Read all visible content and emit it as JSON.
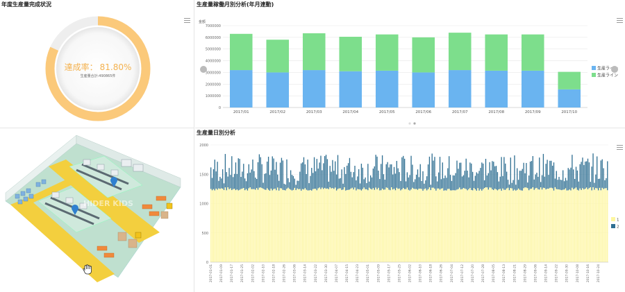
{
  "panels": {
    "annual": {
      "title": "年度生産量完成状況",
      "rate_label": "達成率：",
      "rate_value": "81.80%",
      "total_label": "生産量合計:",
      "total_value": "490865件",
      "completion": 0.818
    },
    "monthly": {
      "title": "生産量稼働月別分析(年月連動)"
    },
    "floor": {
      "title": "",
      "watermark": "HIDER KIDS"
    },
    "daily": {
      "title": "生産量日別分析"
    }
  },
  "colors": {
    "donut_fill": "#fbc97a",
    "donut_track": "#eeeeee",
    "bar_blue": "#6ab4f0",
    "bar_green": "#7dde8c",
    "daily_yellow": "#fdf6a0",
    "daily_blue": "#2f6f92",
    "rate_text": "#f4b24f"
  },
  "chart_data": [
    {
      "type": "bar",
      "stacked": true,
      "ylabel": "金额",
      "ylim": [
        0,
        7000000
      ],
      "yticks": [
        "0",
        "1000000",
        "2000000",
        "3000000",
        "4000000",
        "5000000",
        "6000000",
        "7000000"
      ],
      "categories": [
        "2017/01",
        "2017/02",
        "2017/03",
        "2017/04",
        "2017/05",
        "2017/06",
        "2017/07",
        "2017/08",
        "2017/09",
        "2017/10"
      ],
      "series": [
        {
          "name": "生産ライン",
          "values": [
            3200000,
            3000000,
            3200000,
            3100000,
            3150000,
            3000000,
            3200000,
            3150000,
            3150000,
            1550000
          ]
        },
        {
          "name": "生産ライン",
          "values": [
            3100000,
            2800000,
            3150000,
            2950000,
            3100000,
            3000000,
            3200000,
            3100000,
            3100000,
            1500000
          ]
        }
      ],
      "legend": "right"
    },
    {
      "type": "bar",
      "stacked": true,
      "ylim": [
        0,
        2000
      ],
      "yticks": [
        "0",
        "500",
        "1000",
        "1500",
        "2000"
      ],
      "x_start": "2017-01-01",
      "days": 304,
      "series": [
        {
          "name": "1",
          "base": 1250
        },
        {
          "name": "2",
          "base": 450
        }
      ],
      "legend": "right"
    }
  ],
  "daily_x_labels": [
    "2017-01-01",
    "2017-01-09",
    "2017-01-17",
    "2017-01-25",
    "2017-02-02",
    "2017-02-10",
    "2017-02-18",
    "2017-02-26",
    "2017-03-06",
    "2017-03-14",
    "2017-03-22",
    "2017-03-30",
    "2017-04-07",
    "2017-04-15",
    "2017-04-23",
    "2017-05-01",
    "2017-05-09",
    "2017-05-17",
    "2017-05-25",
    "2017-06-02",
    "2017-06-10",
    "2017-06-18",
    "2017-06-26",
    "2017-07-04",
    "2017-07-12",
    "2017-07-20",
    "2017-07-28",
    "2017-08-05",
    "2017-08-13",
    "2017-08-21",
    "2017-08-29",
    "2017-09-06",
    "2017-09-14",
    "2017-09-22",
    "2017-09-30",
    "2017-10-08",
    "2017-10-16",
    "2017-10-24"
  ]
}
